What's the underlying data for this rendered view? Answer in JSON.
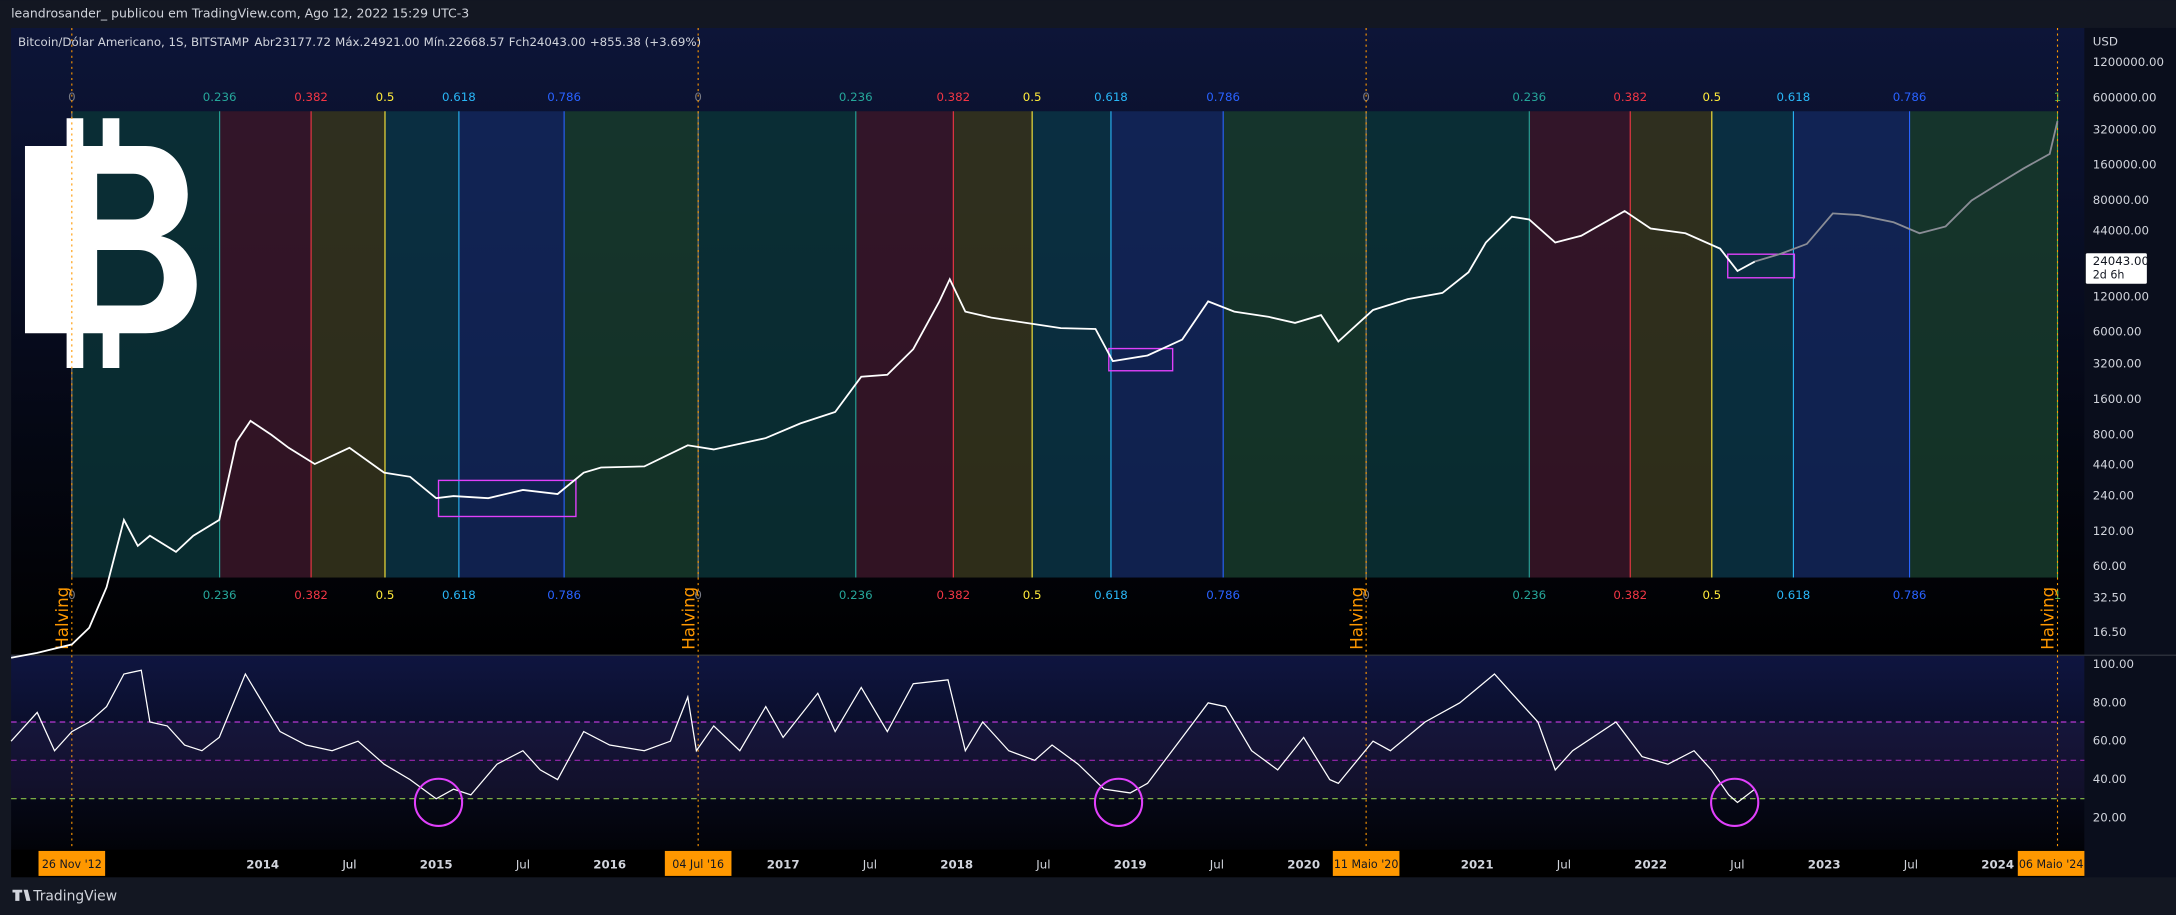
{
  "header": {
    "publisher": "leandrosander_ publicou em TradingView.com, Ago 12, 2022 15:29 UTC-3",
    "symbol": "Bitcoin/Dólar Americano, 1S, BITSTAMP",
    "ohlc": [
      {
        "label": "Abr",
        "value": "23177.72"
      },
      {
        "label": "Máx.",
        "value": "24921.00"
      },
      {
        "label": "Mín.",
        "value": "22668.57"
      },
      {
        "label": "Fch",
        "value": "24043.00"
      }
    ],
    "change": "+855.38 (+3.69%)",
    "currency": "USD",
    "last_price": {
      "value": 24043,
      "label": "24043.00"
    },
    "countdown": "2d 6h"
  },
  "footer": {
    "brand": "TradingView"
  },
  "chart_data": [
    {
      "type": "line",
      "log_scale": true,
      "xlim": [
        2012.55,
        2024.5
      ],
      "ylim": [
        10.5,
        2370000
      ],
      "yticks": [
        {
          "value": 1200000,
          "label": "1200000.00"
        },
        {
          "value": 600000,
          "label": "600000.00"
        },
        {
          "value": 320000,
          "label": "320000.00"
        },
        {
          "value": 160000,
          "label": "160000.00"
        },
        {
          "value": 80000,
          "label": "80000.00"
        },
        {
          "value": 44000,
          "label": "44000.00"
        },
        {
          "value": 12000,
          "label": "12000.00"
        },
        {
          "value": 6000,
          "label": "6000.00"
        },
        {
          "value": 3200,
          "label": "3200.00"
        },
        {
          "value": 1600,
          "label": "1600.00"
        },
        {
          "value": 800,
          "label": "800.00"
        },
        {
          "value": 440,
          "label": "440.00"
        },
        {
          "value": 240,
          "label": "240.00"
        },
        {
          "value": 120,
          "label": "120.00"
        },
        {
          "value": 60,
          "label": "60.00"
        },
        {
          "value": 32.5,
          "label": "32.50"
        },
        {
          "value": 16.5,
          "label": "16.50"
        }
      ],
      "xticks": [
        {
          "value": 2014.5,
          "label": "Jul"
        },
        2014,
        {
          "value": 2014.5,
          "label": "Jul"
        },
        2015,
        {
          "value": 2015.5,
          "label": "Jul"
        },
        2016,
        2017,
        {
          "value": 2017.5,
          "label": "Jul"
        },
        2018,
        {
          "value": 2018.5,
          "label": "Jul"
        },
        2019,
        {
          "value": 2019.5,
          "label": "Jul"
        },
        2020,
        2021,
        {
          "value": 2021.5,
          "label": "Jul"
        },
        2022,
        {
          "value": 2022.5,
          "label": "Jul"
        },
        2023,
        {
          "value": 2023.5,
          "label": "Jul"
        },
        2024
      ],
      "halvings": [
        {
          "value": 2012.9,
          "label": "26 Nov '12"
        },
        {
          "value": 2016.51,
          "label": "04 Jul '16"
        },
        {
          "value": 2020.36,
          "label": "11 Maio '20"
        },
        {
          "value": 2024.345,
          "label": "06 Maio '24"
        }
      ],
      "halving_label": "Halving",
      "fib_levels": [
        0,
        0.236,
        0.382,
        0.5,
        0.618,
        0.786,
        1
      ],
      "fib_colors": [
        "#787b86",
        "#26a69a",
        "#f23645",
        "#ffeb3b",
        "#29b6f6",
        "#2962ff",
        "#4caf50"
      ],
      "fib_fills": [
        "#0b3336",
        "#3a1628",
        "#36351c",
        "#0a3444",
        "#13275a",
        "#183b2b"
      ],
      "series": [
        {
          "color": "#ffffff",
          "x": [
            2012.55,
            2012.7,
            2012.9,
            2013.0,
            2013.1,
            2013.2,
            2013.28,
            2013.35,
            2013.5,
            2013.6,
            2013.75,
            2013.85,
            2013.93,
            2014.05,
            2014.15,
            2014.3,
            2014.5,
            2014.7,
            2014.85,
            2015.0,
            2015.1,
            2015.3,
            2015.5,
            2015.7,
            2015.85,
            2015.95,
            2016.2,
            2016.45,
            2016.6,
            2016.9,
            2017.1,
            2017.3,
            2017.45,
            2017.6,
            2017.75,
            2017.9,
            2017.96,
            2018.05,
            2018.2,
            2018.4,
            2018.6,
            2018.8,
            2018.9,
            2019.1,
            2019.3,
            2019.45,
            2019.6,
            2019.8,
            2019.95,
            2020.1,
            2020.2,
            2020.4,
            2020.6,
            2020.8,
            2020.95,
            2021.05,
            2021.2,
            2021.3,
            2021.45,
            2021.6,
            2021.85,
            2022.0,
            2022.2,
            2022.4,
            2022.5,
            2022.6
          ],
          "values": [
            10,
            11,
            13,
            18,
            40,
            150,
            90,
            110,
            80,
            110,
            150,
            700,
            1050,
            800,
            620,
            450,
            620,
            380,
            350,
            230,
            240,
            230,
            270,
            250,
            380,
            420,
            430,
            650,
            600,
            750,
            1000,
            1250,
            2500,
            2600,
            4300,
            11000,
            17000,
            9000,
            8000,
            7200,
            6500,
            6400,
            3400,
            3800,
            5200,
            11000,
            9000,
            8100,
            7200,
            8400,
            5000,
            9300,
            11500,
            13000,
            19500,
            35000,
            58000,
            55000,
            35000,
            40000,
            65000,
            46000,
            42000,
            31000,
            20000,
            24043
          ]
        },
        {
          "color": "#8a8d96",
          "x": [
            2022.6,
            2022.75,
            2022.9,
            2023.05,
            2023.2,
            2023.4,
            2023.55,
            2023.7,
            2023.85,
            2024.0,
            2024.15,
            2024.3,
            2024.345
          ],
          "values": [
            24043,
            28000,
            34000,
            62000,
            60000,
            52000,
            42000,
            48000,
            80000,
            110000,
            150000,
            200000,
            380000
          ]
        }
      ]
    },
    {
      "type": "line",
      "ylim": [
        3.5,
        104.8
      ],
      "yticks": [
        {
          "value": 100,
          "label": "100.00"
        },
        {
          "value": 80,
          "label": "80.00"
        },
        {
          "value": 60,
          "label": "60.00"
        },
        {
          "value": 40,
          "label": "40.00"
        },
        {
          "value": 20,
          "label": "20.00"
        }
      ],
      "levels": [
        70,
        50,
        30
      ],
      "level_colors": [
        "#e040fb",
        "#9c27b0",
        "#8bc34a"
      ],
      "series": [
        {
          "color": "#ffffff",
          "x": [
            2012.55,
            2012.7,
            2012.8,
            2012.9,
            2013.0,
            2013.1,
            2013.2,
            2013.3,
            2013.35,
            2013.45,
            2013.55,
            2013.65,
            2013.75,
            2013.9,
            2014.0,
            2014.1,
            2014.25,
            2014.4,
            2014.55,
            2014.7,
            2014.85,
            2015.0,
            2015.1,
            2015.2,
            2015.35,
            2015.5,
            2015.6,
            2015.7,
            2015.85,
            2016.0,
            2016.2,
            2016.35,
            2016.45,
            2016.5,
            2016.6,
            2016.75,
            2016.9,
            2017.0,
            2017.2,
            2017.3,
            2017.45,
            2017.6,
            2017.75,
            2017.95,
            2018.05,
            2018.15,
            2018.3,
            2018.45,
            2018.55,
            2018.7,
            2018.85,
            2019.0,
            2019.1,
            2019.3,
            2019.45,
            2019.55,
            2019.7,
            2019.85,
            2020.0,
            2020.15,
            2020.2,
            2020.4,
            2020.5,
            2020.7,
            2020.9,
            2021.1,
            2021.2,
            2021.35,
            2021.45,
            2021.55,
            2021.8,
            2021.95,
            2022.1,
            2022.25,
            2022.35,
            2022.45,
            2022.5,
            2022.6
          ],
          "values": [
            60,
            75,
            55,
            65,
            70,
            78,
            95,
            97,
            70,
            68,
            58,
            55,
            62,
            95,
            80,
            65,
            58,
            55,
            60,
            48,
            40,
            30,
            35,
            32,
            48,
            55,
            45,
            40,
            65,
            58,
            55,
            60,
            83,
            55,
            68,
            55,
            78,
            62,
            85,
            65,
            88,
            65,
            90,
            92,
            55,
            70,
            55,
            50,
            58,
            48,
            35,
            33,
            38,
            62,
            80,
            78,
            55,
            45,
            62,
            40,
            38,
            60,
            55,
            70,
            80,
            95,
            85,
            70,
            45,
            55,
            70,
            52,
            48,
            55,
            45,
            32,
            28,
            35
          ]
        }
      ]
    }
  ]
}
